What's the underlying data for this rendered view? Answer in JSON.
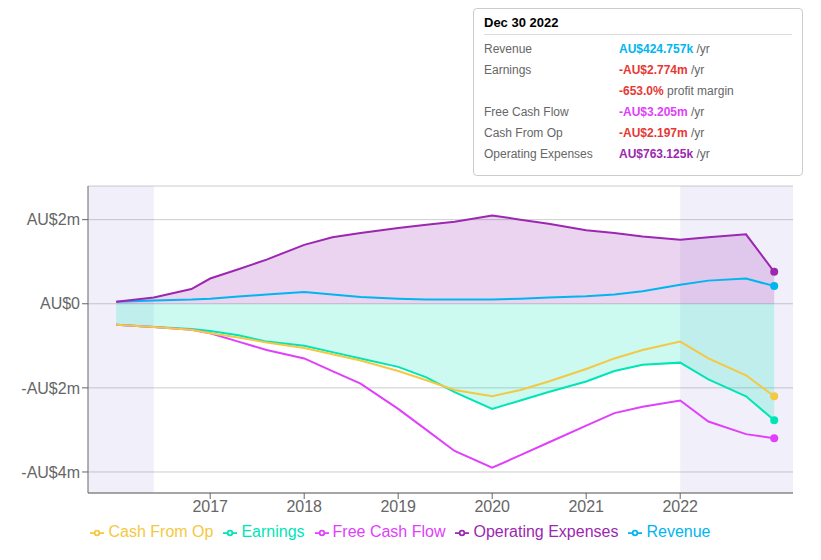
{
  "chart_data": {
    "type": "line",
    "x": [
      2016.0,
      2016.4,
      2016.8,
      2017.0,
      2017.3,
      2017.6,
      2018.0,
      2018.3,
      2018.6,
      2019.0,
      2019.3,
      2019.6,
      2020.0,
      2020.3,
      2020.6,
      2021.0,
      2021.3,
      2021.6,
      2022.0,
      2022.3,
      2022.7,
      2023.0
    ],
    "series": [
      {
        "name": "Revenue",
        "color": "#00b5f0",
        "values": [
          0.05,
          0.08,
          0.1,
          0.12,
          0.17,
          0.22,
          0.28,
          0.22,
          0.16,
          0.12,
          0.1,
          0.1,
          0.1,
          0.12,
          0.15,
          0.18,
          0.22,
          0.3,
          0.45,
          0.55,
          0.6,
          0.42
        ]
      },
      {
        "name": "Earnings",
        "color": "#00e5b5",
        "type": "area",
        "values": [
          -0.5,
          -0.55,
          -0.6,
          -0.65,
          -0.75,
          -0.9,
          -1.0,
          -1.15,
          -1.3,
          -1.5,
          -1.75,
          -2.1,
          -2.5,
          -2.3,
          -2.1,
          -1.85,
          -1.6,
          -1.45,
          -1.4,
          -1.8,
          -2.2,
          -2.77
        ]
      },
      {
        "name": "Free Cash Flow",
        "color": "#e040fb",
        "values": [
          -0.5,
          -0.55,
          -0.62,
          -0.7,
          -0.9,
          -1.1,
          -1.3,
          -1.6,
          -1.9,
          -2.5,
          -3.0,
          -3.5,
          -3.9,
          -3.6,
          -3.3,
          -2.9,
          -2.6,
          -2.45,
          -2.3,
          -2.8,
          -3.1,
          -3.2
        ]
      },
      {
        "name": "Cash From Op",
        "color": "#f4c842",
        "values": [
          -0.5,
          -0.55,
          -0.62,
          -0.7,
          -0.8,
          -0.92,
          -1.05,
          -1.2,
          -1.35,
          -1.6,
          -1.82,
          -2.05,
          -2.2,
          -2.05,
          -1.85,
          -1.55,
          -1.3,
          -1.1,
          -0.9,
          -1.3,
          -1.7,
          -2.2
        ]
      },
      {
        "name": "Operating Expenses",
        "color": "#9c27b0",
        "type": "area",
        "values": [
          0.05,
          0.15,
          0.35,
          0.6,
          0.82,
          1.05,
          1.4,
          1.58,
          1.68,
          1.8,
          1.88,
          1.95,
          2.1,
          2.0,
          1.9,
          1.75,
          1.68,
          1.6,
          1.52,
          1.58,
          1.65,
          0.76
        ]
      }
    ],
    "xlim": [
      2015.7,
      2023.2
    ],
    "xticks": [
      2017,
      2018,
      2019,
      2020,
      2021,
      2022
    ],
    "ylim": [
      -4.5,
      2.8
    ],
    "yticks": [
      {
        "value": -4,
        "label": "-AU$4m"
      },
      {
        "value": -2,
        "label": "-AU$2m"
      },
      {
        "value": 0,
        "label": "AU$0"
      },
      {
        "value": 2,
        "label": "AU$2m"
      }
    ],
    "highlight_spans": [
      [
        2015.7,
        2016.4
      ],
      [
        2022.0,
        2023.2
      ]
    ],
    "grid": true,
    "legend": "bottom",
    "annotations": {
      "title": "Dec 30 2022",
      "rows": [
        {
          "label": "Revenue",
          "value": "AU$424.757k",
          "unit": " /yr",
          "color": "#00b5f0"
        },
        {
          "label": "Earnings",
          "value": "-AU$2.774m",
          "unit": " /yr",
          "color": "#e53935"
        },
        {
          "label": null,
          "value": "-653.0%",
          "unit": " profit margin",
          "color": "#e53935"
        },
        {
          "label": "Free Cash Flow",
          "value": "-AU$3.205m",
          "unit": " /yr",
          "color": "#e040fb"
        },
        {
          "label": "Cash From Op",
          "value": "-AU$2.197m",
          "unit": " /yr",
          "color": "#e53935"
        },
        {
          "label": "Operating Expenses",
          "value": "AU$763.125k",
          "unit": " /yr",
          "color": "#9c27b0"
        }
      ]
    }
  }
}
